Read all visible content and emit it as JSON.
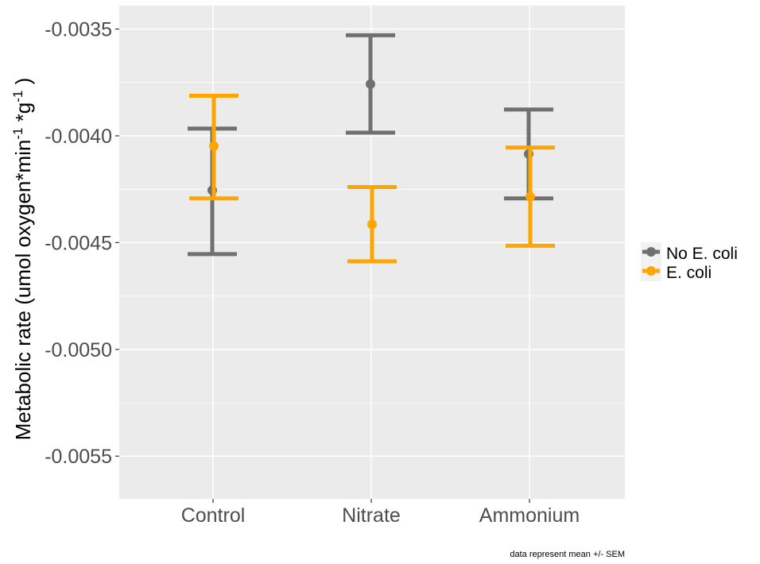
{
  "chart_data": {
    "type": "errorbar",
    "categories": [
      "Control",
      "Nitrate",
      "Ammonium"
    ],
    "ylabel": {
      "prefix": "Metabolic rate (umol oxygen*min",
      "sup1": "-1",
      "mid": " *g",
      "sup2": "-1",
      "suffix": " )"
    },
    "ylim": [
      -0.0057,
      -0.00339
    ],
    "yticks": [
      -0.0055,
      -0.005,
      -0.0045,
      -0.004,
      -0.0035
    ],
    "ytick_labels": [
      "-0.0055",
      "-0.0050",
      "-0.0045",
      "-0.0040",
      "-0.0035"
    ],
    "grid": true,
    "legend_position": "right",
    "caption": "data represent mean +/- SEM",
    "series": [
      {
        "name": "No E. coli",
        "color": "#707070",
        "means": [
          -0.004255,
          -0.003758,
          -0.004085
        ],
        "lower": [
          -0.004554,
          -0.003985,
          -0.004293
        ],
        "upper": [
          -0.003966,
          -0.003529,
          -0.003877
        ]
      },
      {
        "name": "E. coli",
        "color": "#FFA500",
        "means": [
          -0.004048,
          -0.004415,
          -0.004285
        ],
        "lower": [
          -0.004293,
          -0.004588,
          -0.004515
        ],
        "upper": [
          -0.003812,
          -0.00424,
          -0.004055
        ]
      }
    ]
  }
}
